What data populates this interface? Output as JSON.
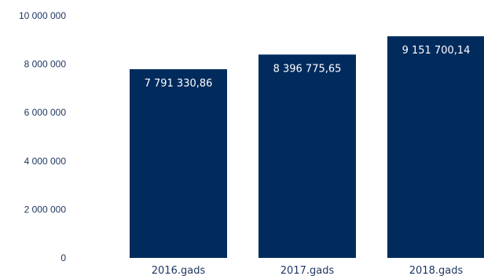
{
  "chart_data": {
    "type": "bar",
    "categories": [
      "2016.gads",
      "2017.gads",
      "2018.gads"
    ],
    "values": [
      7791330.86,
      8396775.65,
      9151700.14
    ],
    "data_labels": [
      "7 791 330,86",
      "8 396 775,65",
      "9 151 700,14"
    ],
    "ylim": [
      0,
      10000000
    ],
    "yticks": [
      0,
      2000000,
      4000000,
      6000000,
      8000000,
      10000000
    ],
    "ytick_labels": [
      "0",
      "2 000 000",
      "4 000 000",
      "6 000 000",
      "8 000 000",
      "10 000 000"
    ],
    "grid": false,
    "title": "",
    "xlabel": "",
    "ylabel": "",
    "bar_color": "#012b5d",
    "label_color": "#ffffff",
    "tick_color": "#1f3864"
  }
}
